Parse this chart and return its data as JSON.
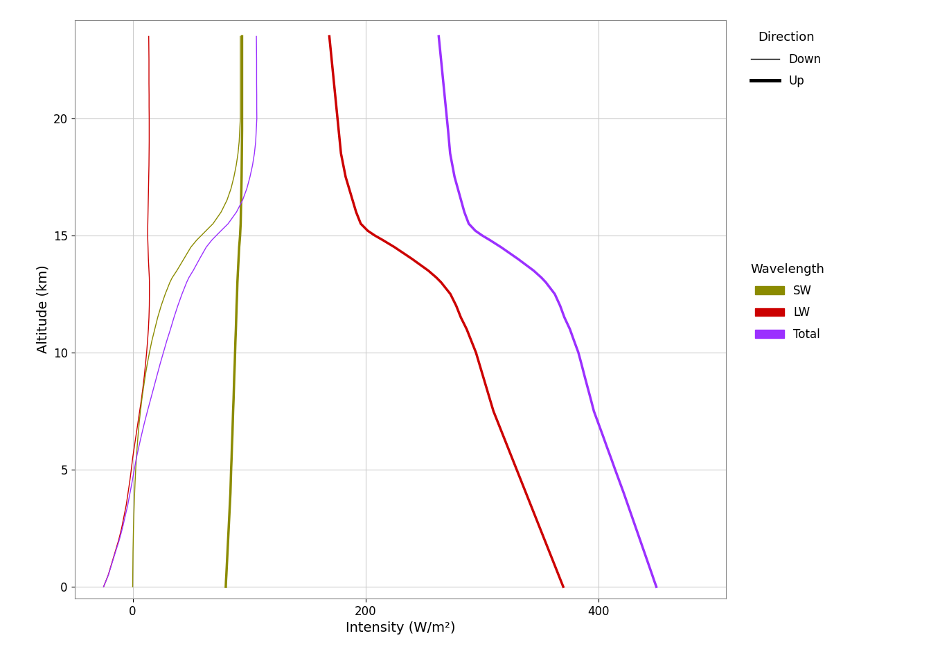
{
  "xlabel": "Intensity (W/m²)",
  "ylabel": "Altitude (km)",
  "xlim": [
    -50,
    510
  ],
  "ylim": [
    -0.5,
    24.2
  ],
  "xticks": [
    0,
    200,
    400
  ],
  "yticks": [
    0,
    5,
    10,
    15,
    20
  ],
  "sw_color": "#8B8B00",
  "lw_color": "#CC0000",
  "total_color": "#9B30FF",
  "bg_color": "#FFFFFF",
  "grid_color": "#CCCCCC",
  "thin_lw": 1.0,
  "thick_lw": 2.5,
  "alt": [
    0,
    0.25,
    0.5,
    1,
    1.5,
    2,
    2.5,
    3,
    3.5,
    4,
    4.5,
    5,
    5.5,
    6,
    6.5,
    7,
    7.5,
    8,
    8.5,
    9,
    9.5,
    10,
    10.5,
    11,
    11.5,
    12,
    12.5,
    13,
    13.2,
    13.5,
    14.0,
    14.5,
    14.8,
    15.0,
    15.2,
    15.5,
    16,
    16.5,
    17,
    17.5,
    18,
    18.5,
    19,
    19.5,
    20,
    20.5,
    21,
    21.5,
    22,
    22.5,
    23,
    23.5
  ],
  "lw_down_x": [
    -25,
    -23,
    -21,
    -18,
    -15,
    -12,
    -9.5,
    -7.5,
    -5.5,
    -4,
    -2.5,
    -1.2,
    0,
    1.5,
    3,
    4.5,
    6,
    7.5,
    8.8,
    10,
    11,
    12,
    12.8,
    13.5,
    14,
    14.3,
    14.4,
    14.4,
    14.3,
    14.0,
    13.5,
    13.2,
    13.0,
    12.9,
    12.9,
    13.0,
    13.2,
    13.4,
    13.6,
    13.8,
    14.0,
    14.1,
    14.2,
    14.2,
    14.2,
    14.1,
    14.1,
    14.0,
    14.0,
    14.0,
    13.9,
    13.8
  ],
  "lw_up_x": [
    370,
    368,
    366,
    362,
    358,
    354,
    350,
    346,
    342,
    338,
    334,
    330,
    326,
    322,
    318,
    314,
    310,
    307,
    304,
    301,
    298,
    295,
    291,
    287,
    282,
    278,
    273,
    265,
    261,
    254,
    240,
    225,
    215,
    208,
    202,
    196,
    192,
    189,
    186,
    183,
    181,
    179,
    178,
    177,
    176,
    175,
    174,
    173,
    172,
    171,
    170,
    169
  ],
  "sw_down_x": [
    0,
    0.05,
    0.1,
    0.2,
    0.3,
    0.5,
    0.7,
    1.0,
    1.3,
    1.7,
    2.1,
    2.6,
    3.2,
    3.9,
    4.7,
    5.6,
    6.7,
    7.9,
    9.3,
    10.8,
    12.5,
    14.4,
    16.5,
    19.0,
    21.5,
    24.5,
    28.0,
    32.0,
    34.0,
    38.0,
    44.0,
    50.0,
    55.0,
    59.0,
    63.0,
    69.0,
    76.0,
    81.0,
    84.5,
    87.0,
    89.0,
    90.5,
    91.5,
    92.0,
    92.5,
    92.5,
    92.5,
    92.5,
    92.5,
    92.5,
    92.5,
    92.5
  ],
  "sw_up_x": [
    80,
    80.2,
    80.5,
    81,
    81.5,
    82,
    82.5,
    83,
    83.5,
    84,
    84.3,
    84.6,
    85,
    85.3,
    85.7,
    86,
    86.3,
    86.7,
    87,
    87.3,
    87.7,
    88,
    88.3,
    88.7,
    89,
    89.3,
    89.7,
    90,
    90.2,
    90.5,
    91.0,
    91.5,
    92.0,
    92.3,
    92.5,
    92.8,
    93.0,
    93.2,
    93.4,
    93.6,
    93.7,
    93.8,
    93.9,
    94.0,
    94.0,
    94.0,
    94.0,
    94.0,
    94.0,
    94.0,
    94.0,
    94.0
  ]
}
